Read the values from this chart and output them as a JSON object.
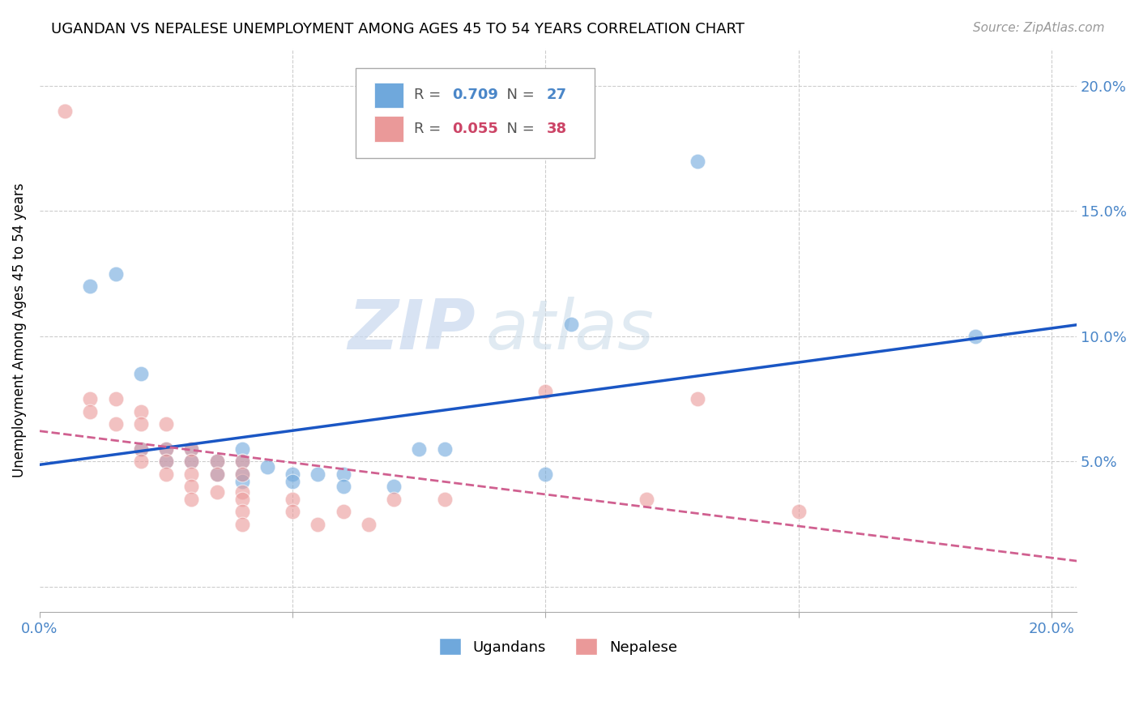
{
  "title": "UGANDAN VS NEPALESE UNEMPLOYMENT AMONG AGES 45 TO 54 YEARS CORRELATION CHART",
  "source": "Source: ZipAtlas.com",
  "ylabel": "Unemployment Among Ages 45 to 54 years",
  "ugandan_color": "#6fa8dc",
  "nepalese_color": "#ea9999",
  "ugandan_label": "Ugandans",
  "nepalese_label": "Nepalese",
  "R_ugandan": "0.709",
  "N_ugandan": "27",
  "R_nepalese": "0.055",
  "N_nepalese": "38",
  "ugandan_line_color": "#1a56c4",
  "nepalese_line_color": "#d06090",
  "watermark_zip": "ZIP",
  "watermark_atlas": "atlas",
  "ugandan_scatter": [
    [
      1.0,
      12.0
    ],
    [
      1.5,
      12.5
    ],
    [
      2.0,
      8.5
    ],
    [
      2.0,
      5.5
    ],
    [
      2.5,
      5.5
    ],
    [
      2.5,
      5.0
    ],
    [
      3.0,
      5.5
    ],
    [
      3.0,
      5.0
    ],
    [
      3.5,
      5.0
    ],
    [
      3.5,
      4.5
    ],
    [
      4.0,
      5.5
    ],
    [
      4.0,
      5.0
    ],
    [
      4.0,
      4.5
    ],
    [
      4.0,
      4.2
    ],
    [
      4.5,
      4.8
    ],
    [
      5.0,
      4.5
    ],
    [
      5.0,
      4.2
    ],
    [
      5.5,
      4.5
    ],
    [
      6.0,
      4.5
    ],
    [
      6.0,
      4.0
    ],
    [
      7.0,
      4.0
    ],
    [
      7.5,
      5.5
    ],
    [
      8.0,
      5.5
    ],
    [
      10.0,
      4.5
    ],
    [
      10.5,
      10.5
    ],
    [
      13.0,
      17.0
    ],
    [
      18.5,
      10.0
    ]
  ],
  "nepalese_scatter": [
    [
      0.5,
      19.0
    ],
    [
      1.0,
      7.5
    ],
    [
      1.0,
      7.0
    ],
    [
      1.5,
      7.5
    ],
    [
      1.5,
      6.5
    ],
    [
      2.0,
      7.0
    ],
    [
      2.0,
      6.5
    ],
    [
      2.0,
      5.5
    ],
    [
      2.0,
      5.0
    ],
    [
      2.5,
      6.5
    ],
    [
      2.5,
      5.5
    ],
    [
      2.5,
      5.0
    ],
    [
      2.5,
      4.5
    ],
    [
      3.0,
      5.5
    ],
    [
      3.0,
      5.0
    ],
    [
      3.0,
      4.5
    ],
    [
      3.0,
      4.0
    ],
    [
      3.0,
      3.5
    ],
    [
      3.5,
      5.0
    ],
    [
      3.5,
      4.5
    ],
    [
      3.5,
      3.8
    ],
    [
      4.0,
      5.0
    ],
    [
      4.0,
      4.5
    ],
    [
      4.0,
      3.8
    ],
    [
      4.0,
      3.5
    ],
    [
      4.0,
      3.0
    ],
    [
      4.0,
      2.5
    ],
    [
      5.0,
      3.5
    ],
    [
      5.0,
      3.0
    ],
    [
      5.5,
      2.5
    ],
    [
      6.0,
      3.0
    ],
    [
      6.5,
      2.5
    ],
    [
      7.0,
      3.5
    ],
    [
      8.0,
      3.5
    ],
    [
      10.0,
      7.8
    ],
    [
      12.0,
      3.5
    ],
    [
      13.0,
      7.5
    ],
    [
      15.0,
      3.0
    ]
  ],
  "xlim": [
    0.0,
    20.5
  ],
  "ylim": [
    -1.0,
    21.5
  ],
  "right_yticks": [
    5.0,
    10.0,
    15.0,
    20.0
  ],
  "right_yticklabels": [
    "5.0%",
    "10.0%",
    "15.0%",
    "20.0%"
  ]
}
